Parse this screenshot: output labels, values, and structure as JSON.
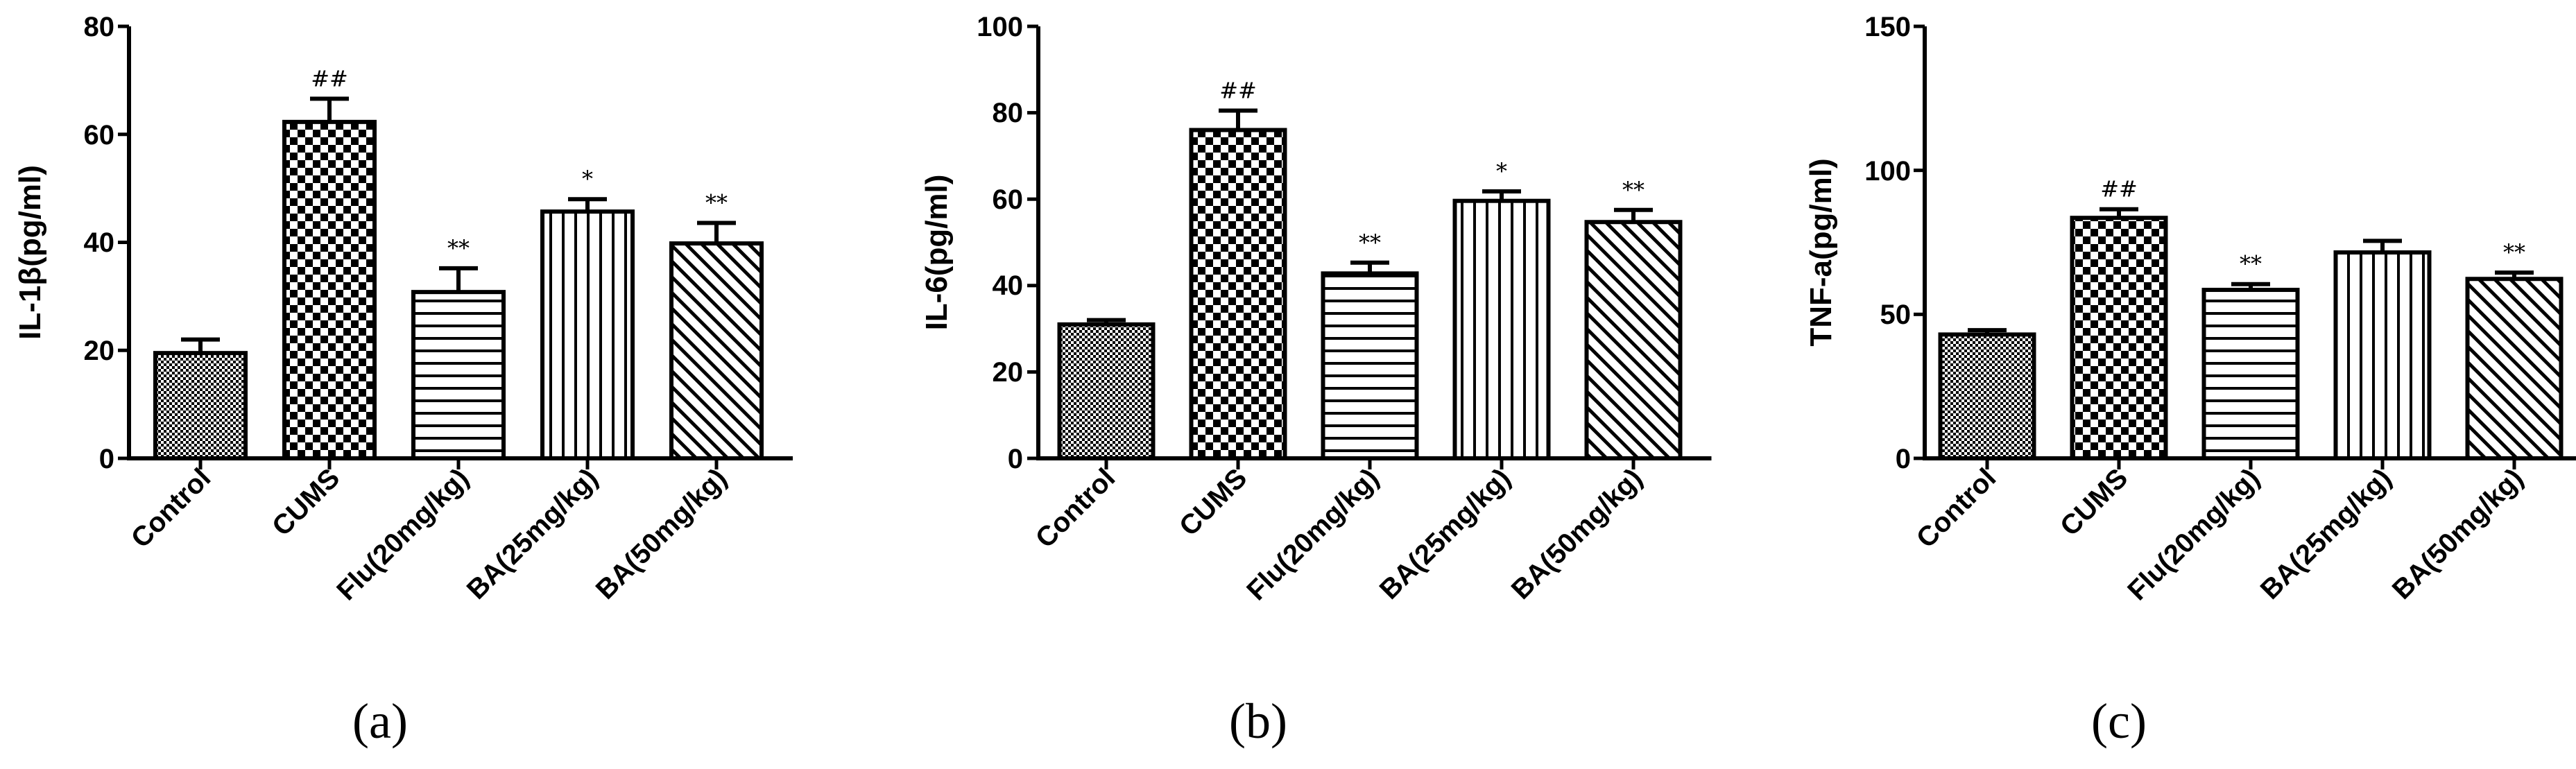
{
  "colors": {
    "ink": "#000000",
    "background": "#ffffff"
  },
  "chart_data": [
    {
      "type": "bar",
      "panel_label": "(a)",
      "ylabel": "IL-1β(pg/ml)",
      "ylim": [
        0,
        80
      ],
      "yticks": [
        "0",
        "20",
        "40",
        "60",
        "80"
      ],
      "categories": [
        "Control",
        "CUMS",
        "Flu(20mg/kg)",
        "BA(25mg/kg)",
        "BA(50mg/kg)"
      ],
      "values": [
        19.5,
        62.3,
        30.8,
        45.7,
        39.8
      ],
      "errors": [
        2.5,
        4.3,
        4.4,
        2.3,
        3.8
      ],
      "annotations": [
        "",
        "##",
        "**",
        "*",
        "**"
      ],
      "patterns": [
        "dots",
        "checker",
        "hlines",
        "vlines",
        "diag"
      ]
    },
    {
      "type": "bar",
      "panel_label": "(b)",
      "ylabel": "IL-6(pg/ml)",
      "ylim": [
        0,
        100
      ],
      "yticks": [
        "0",
        "20",
        "40",
        "60",
        "80",
        "100"
      ],
      "categories": [
        "Control",
        "CUMS",
        "Flu(20mg/kg)",
        "BA(25mg/kg)",
        "BA(50mg/kg)"
      ],
      "values": [
        31.0,
        76.0,
        42.8,
        59.6,
        54.7
      ],
      "errors": [
        1.0,
        4.5,
        2.5,
        2.2,
        2.8
      ],
      "annotations": [
        "",
        "##",
        "**",
        "*",
        "**"
      ],
      "patterns": [
        "dots",
        "checker",
        "hlines",
        "vlines",
        "diag"
      ]
    },
    {
      "type": "bar",
      "panel_label": "(c)",
      "ylabel": "TNF-a(pg/ml)",
      "ylim": [
        0,
        150
      ],
      "yticks": [
        "0",
        "50",
        "100",
        "150"
      ],
      "categories": [
        "Control",
        "CUMS",
        "Flu(20mg/kg)",
        "BA(25mg/kg)",
        "BA(50mg/kg)"
      ],
      "values": [
        43.0,
        83.5,
        58.5,
        71.5,
        62.3
      ],
      "errors": [
        1.5,
        3.0,
        2.0,
        4.0,
        2.2
      ],
      "annotations": [
        "",
        "##",
        "**",
        "",
        "**"
      ],
      "patterns": [
        "dots",
        "checker",
        "hlines",
        "vlines",
        "diag"
      ]
    }
  ]
}
